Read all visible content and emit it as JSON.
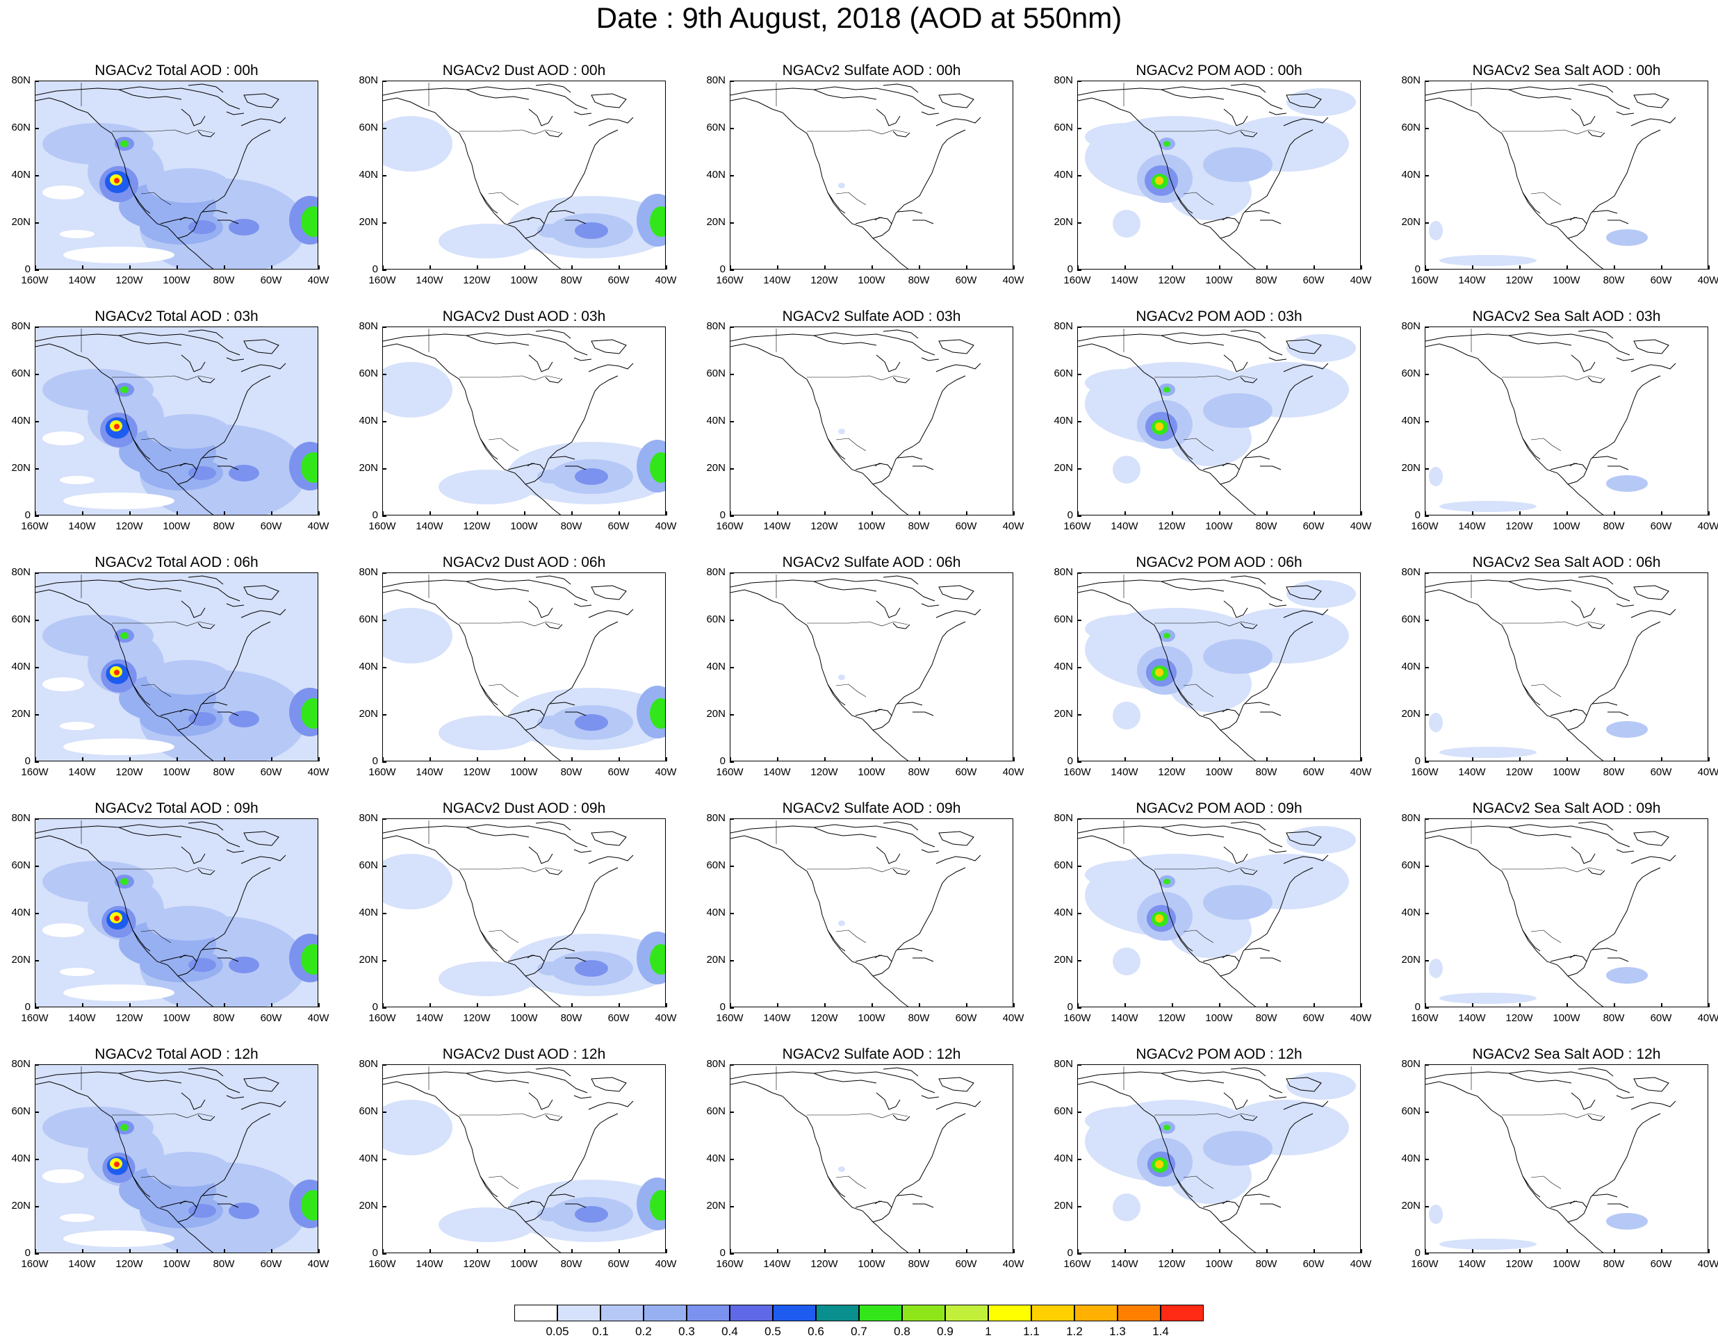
{
  "title": "Date : 9th August, 2018 (AOD at 550nm)",
  "x_axis_labels": [
    "160W",
    "140W",
    "120W",
    "100W",
    "80W",
    "60W",
    "40W"
  ],
  "y_axis_labels": [
    "80N",
    "60N",
    "40N",
    "20N",
    "0"
  ],
  "panel_types": [
    "total",
    "dust",
    "sulfate",
    "pom",
    "seasalt"
  ],
  "rows": [
    {
      "hour": "00h",
      "titles": [
        "NGACv2 Total AOD : 00h",
        "NGACv2 Dust AOD : 00h",
        "NGACv2 Sulfate AOD : 00h",
        "NGACv2 POM AOD : 00h",
        "NGACv2 Sea Salt AOD : 00h"
      ]
    },
    {
      "hour": "03h",
      "titles": [
        "NGACv2 Total AOD : 03h",
        "NGACv2 Dust AOD : 03h",
        "NGACv2 Sulfate AOD : 03h",
        "NGACv2 POM AOD : 03h",
        "NGACv2 Sea Salt AOD : 03h"
      ]
    },
    {
      "hour": "06h",
      "titles": [
        "NGACv2 Total AOD : 06h",
        "NGACv2 Dust AOD : 06h",
        "NGACv2 Sulfate AOD : 06h",
        "NGACv2 POM AOD : 06h",
        "NGACv2 Sea Salt AOD : 06h"
      ]
    },
    {
      "hour": "09h",
      "titles": [
        "NGACv2 Total AOD : 09h",
        "NGACv2 Dust AOD : 09h",
        "NGACv2 Sulfate AOD : 09h",
        "NGACv2 POM AOD : 09h",
        "NGACv2 Sea Salt  AOD : 09h"
      ]
    },
    {
      "hour": "12h",
      "titles": [
        "NGACv2 Total AOD  : 12h",
        "NGACv2 Dust AOD : 12h",
        "NGACv2 Sulfate AOD : 12h",
        "NGACv2 POM  AOD : 12h",
        "NGACv2 Sea Salt  AOD : 12h"
      ]
    }
  ],
  "colorbar": {
    "colors": [
      "#ffffff",
      "#d6e1fb",
      "#b6c8f6",
      "#97b0f2",
      "#7b92ee",
      "#5f68e6",
      "#1e5cf0",
      "#0a8f8f",
      "#33e61a",
      "#8ee61a",
      "#c2f03a",
      "#ffff00",
      "#ffd000",
      "#ffb000",
      "#ff8000",
      "#ff2a14"
    ],
    "labels": [
      "0.05",
      "0.1",
      "0.2",
      "0.3",
      "0.4",
      "0.5",
      "0.6",
      "0.7",
      "0.8",
      "0.9",
      "1",
      "1.1",
      "1.2",
      "1.3",
      "1.4"
    ]
  }
}
